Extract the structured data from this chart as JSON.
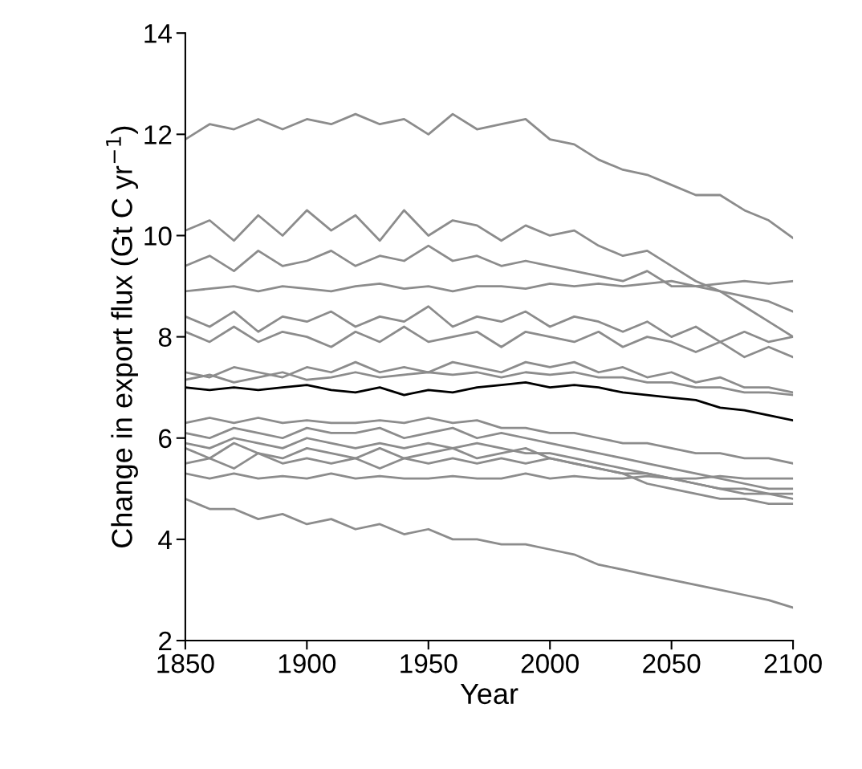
{
  "chart_data": {
    "type": "line",
    "xlabel": "Year",
    "ylabel": "Change in export flux (Gt C yr$^{−1}$)",
    "x": [
      1850,
      1860,
      1870,
      1880,
      1890,
      1900,
      1910,
      1920,
      1930,
      1940,
      1950,
      1960,
      1970,
      1980,
      1990,
      2000,
      2010,
      2020,
      2030,
      2040,
      2050,
      2060,
      2070,
      2080,
      2090,
      2100
    ],
    "series": [
      {
        "color": "#8c8c8c",
        "values": [
          11.9,
          12.2,
          12.1,
          12.3,
          12.1,
          12.3,
          12.2,
          12.4,
          12.2,
          12.3,
          12.0,
          12.4,
          12.1,
          12.2,
          12.3,
          11.9,
          11.8,
          11.5,
          11.3,
          11.2,
          11.0,
          10.8,
          10.8,
          10.5,
          10.3,
          9.95
        ]
      },
      {
        "color": "#8c8c8c",
        "values": [
          10.1,
          10.3,
          9.9,
          10.4,
          10.0,
          10.5,
          10.1,
          10.4,
          9.9,
          10.5,
          10.0,
          10.3,
          10.2,
          9.9,
          10.2,
          10.0,
          10.1,
          9.8,
          9.6,
          9.7,
          9.4,
          9.1,
          8.9,
          8.6,
          8.3,
          8.0
        ]
      },
      {
        "color": "#8c8c8c",
        "values": [
          9.4,
          9.6,
          9.3,
          9.7,
          9.4,
          9.5,
          9.7,
          9.4,
          9.6,
          9.5,
          9.8,
          9.5,
          9.6,
          9.4,
          9.5,
          9.4,
          9.3,
          9.2,
          9.1,
          9.3,
          9.0,
          9.0,
          8.9,
          8.8,
          8.7,
          8.5
        ]
      },
      {
        "color": "#8c8c8c",
        "values": [
          8.9,
          8.95,
          9.0,
          8.9,
          9.0,
          8.95,
          8.9,
          9.0,
          9.05,
          8.95,
          9.0,
          8.9,
          9.0,
          9.0,
          8.95,
          9.05,
          9.0,
          9.05,
          9.0,
          9.05,
          9.1,
          9.0,
          9.05,
          9.1,
          9.05,
          9.1
        ]
      },
      {
        "color": "#8c8c8c",
        "values": [
          8.4,
          8.2,
          8.5,
          8.1,
          8.4,
          8.3,
          8.5,
          8.2,
          8.4,
          8.3,
          8.6,
          8.2,
          8.4,
          8.3,
          8.5,
          8.2,
          8.4,
          8.3,
          8.1,
          8.3,
          8.0,
          8.2,
          7.9,
          8.1,
          7.9,
          8.0
        ]
      },
      {
        "color": "#8c8c8c",
        "values": [
          8.1,
          7.9,
          8.2,
          7.9,
          8.1,
          8.0,
          7.8,
          8.1,
          7.9,
          8.2,
          7.9,
          8.0,
          8.1,
          7.8,
          8.1,
          8.0,
          7.9,
          8.1,
          7.8,
          8.0,
          7.9,
          7.7,
          7.9,
          7.6,
          7.8,
          7.6
        ]
      },
      {
        "color": "#8c8c8c",
        "values": [
          7.3,
          7.2,
          7.4,
          7.3,
          7.2,
          7.4,
          7.3,
          7.5,
          7.3,
          7.4,
          7.3,
          7.5,
          7.4,
          7.3,
          7.5,
          7.4,
          7.5,
          7.3,
          7.4,
          7.2,
          7.3,
          7.1,
          7.2,
          7.0,
          7.0,
          6.9
        ]
      },
      {
        "color": "#8c8c8c",
        "values": [
          7.15,
          7.25,
          7.1,
          7.2,
          7.3,
          7.15,
          7.2,
          7.3,
          7.2,
          7.25,
          7.3,
          7.25,
          7.3,
          7.2,
          7.3,
          7.25,
          7.3,
          7.2,
          7.2,
          7.1,
          7.1,
          7.0,
          7.0,
          6.9,
          6.9,
          6.85
        ]
      },
      {
        "color": "#8c8c8c",
        "values": [
          6.3,
          6.4,
          6.3,
          6.4,
          6.3,
          6.35,
          6.3,
          6.3,
          6.35,
          6.3,
          6.4,
          6.3,
          6.35,
          6.2,
          6.2,
          6.1,
          6.1,
          6.0,
          5.9,
          5.9,
          5.8,
          5.7,
          5.7,
          5.6,
          5.6,
          5.5
        ]
      },
      {
        "color": "#8c8c8c",
        "values": [
          6.1,
          6.0,
          6.2,
          6.1,
          6.0,
          6.2,
          6.1,
          6.1,
          6.2,
          6.0,
          6.1,
          6.2,
          6.0,
          6.1,
          6.0,
          5.9,
          5.8,
          5.7,
          5.6,
          5.5,
          5.4,
          5.3,
          5.2,
          5.1,
          5.0,
          5.0
        ]
      },
      {
        "color": "#8c8c8c",
        "values": [
          5.9,
          5.8,
          6.0,
          5.9,
          5.8,
          6.0,
          5.9,
          5.8,
          5.9,
          5.8,
          5.9,
          5.8,
          5.9,
          5.8,
          5.7,
          5.7,
          5.6,
          5.5,
          5.4,
          5.3,
          5.2,
          5.1,
          5.0,
          5.0,
          4.9,
          4.9
        ]
      },
      {
        "color": "#8c8c8c",
        "values": [
          5.8,
          5.6,
          5.9,
          5.7,
          5.6,
          5.8,
          5.7,
          5.6,
          5.8,
          5.6,
          5.7,
          5.8,
          5.6,
          5.7,
          5.8,
          5.6,
          5.5,
          5.4,
          5.3,
          5.1,
          5.0,
          4.9,
          4.8,
          4.8,
          4.7,
          4.7
        ]
      },
      {
        "color": "#8c8c8c",
        "values": [
          5.5,
          5.6,
          5.4,
          5.7,
          5.5,
          5.6,
          5.5,
          5.6,
          5.4,
          5.6,
          5.5,
          5.6,
          5.5,
          5.6,
          5.5,
          5.6,
          5.5,
          5.4,
          5.3,
          5.3,
          5.2,
          5.1,
          5.0,
          4.9,
          4.9,
          4.8
        ]
      },
      {
        "color": "#8c8c8c",
        "values": [
          5.3,
          5.2,
          5.3,
          5.2,
          5.25,
          5.2,
          5.3,
          5.2,
          5.25,
          5.2,
          5.2,
          5.25,
          5.2,
          5.2,
          5.3,
          5.2,
          5.25,
          5.2,
          5.2,
          5.25,
          5.2,
          5.2,
          5.25,
          5.2,
          5.2,
          5.2
        ]
      },
      {
        "color": "#8c8c8c",
        "values": [
          4.8,
          4.6,
          4.6,
          4.4,
          4.5,
          4.3,
          4.4,
          4.2,
          4.3,
          4.1,
          4.2,
          4.0,
          4.0,
          3.9,
          3.9,
          3.8,
          3.7,
          3.5,
          3.4,
          3.3,
          3.2,
          3.1,
          3.0,
          2.9,
          2.8,
          2.65
        ]
      },
      {
        "color": "#000000",
        "values": [
          7.0,
          6.95,
          7.0,
          6.95,
          7.0,
          7.05,
          6.95,
          6.9,
          7.0,
          6.85,
          6.95,
          6.9,
          7.0,
          7.05,
          7.1,
          7.0,
          7.05,
          7.0,
          6.9,
          6.85,
          6.8,
          6.75,
          6.6,
          6.55,
          6.45,
          6.35
        ]
      }
    ],
    "xlim": [
      1850,
      2100
    ],
    "xticks": [
      1850,
      1900,
      1950,
      2000,
      2050,
      2100
    ],
    "ylim": [
      2,
      14
    ],
    "yticks": [
      2,
      4,
      6,
      8,
      10,
      12,
      14
    ],
    "grid": false,
    "legend": false,
    "marker": "none",
    "line_style": "solid"
  }
}
